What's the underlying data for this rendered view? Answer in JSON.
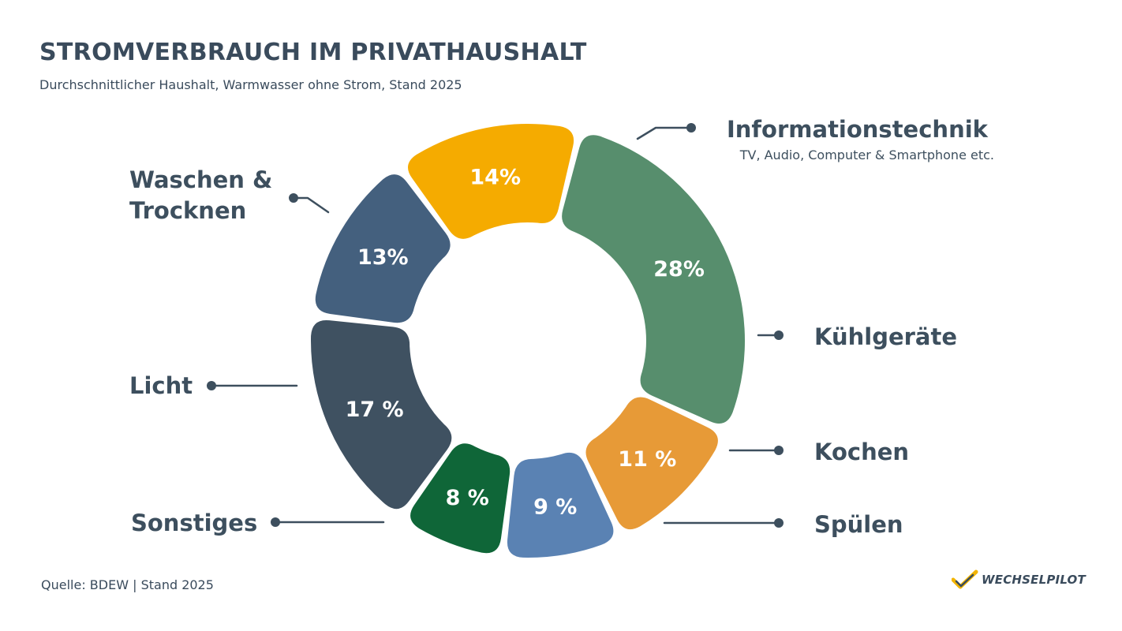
{
  "header": {
    "title": "STROMVERBRAUCH IM PRIVATHAUSHALT",
    "subtitle": "Durchschnittlicher Haushalt, Warmwasser ohne Strom, Stand 2025"
  },
  "footer": {
    "source": "Quelle: BDEW | Stand 2025",
    "logo_text": "WECHSELPILOT",
    "logo_icon": "check-mark-icon",
    "logo_colors": [
      "#f2b400",
      "#3a4b5c"
    ]
  },
  "chart_data": {
    "type": "pie",
    "style": "donut",
    "title": "STROMVERBRAUCH IM PRIVATHAUSHALT",
    "subtitle": "Durchschnittlicher Haushalt, Warmwasser ohne Strom, Stand 2025",
    "slices": [
      {
        "label": "Informationstechnik",
        "sublabel": "TV, Audio, Computer & Smartphone etc.",
        "value": 28,
        "display": "28%",
        "color": "#578e6d"
      },
      {
        "label": "Kühlgeräte",
        "sublabel": "",
        "value": 11,
        "display": "11 %",
        "color": "#e79a37"
      },
      {
        "label": "Kochen",
        "sublabel": "",
        "value": 9,
        "display": "9 %",
        "color": "#5a82b3"
      },
      {
        "label": "Spülen",
        "sublabel": "",
        "value": 8,
        "display": "8 %",
        "color": "#0f6638"
      },
      {
        "label": "Sonstiges",
        "sublabel": "",
        "value": 17,
        "display": "17 %",
        "color": "#3f5161"
      },
      {
        "label": "Licht",
        "sublabel": "",
        "value": 13,
        "display": "13%",
        "color": "#44607e"
      },
      {
        "label": "Waschen &\nTrocknen",
        "sublabel": "",
        "value": 14,
        "display": "14%",
        "color": "#f5ab00"
      }
    ],
    "label_color": "#3d4f5e",
    "percent_label_color": "#ffffff"
  }
}
